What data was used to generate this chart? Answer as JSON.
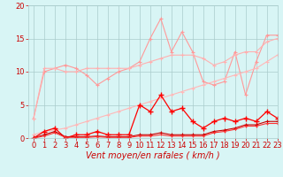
{
  "x": [
    0,
    1,
    2,
    3,
    4,
    5,
    6,
    7,
    8,
    9,
    10,
    11,
    12,
    13,
    14,
    15,
    16,
    17,
    18,
    19,
    20,
    21,
    22,
    23
  ],
  "series": [
    {
      "name": "volatile_pink",
      "color": "#FF9999",
      "lw": 0.8,
      "marker": "+",
      "ms": 3,
      "mew": 0.8,
      "y": [
        3.0,
        10.0,
        10.5,
        11.0,
        10.5,
        9.5,
        8.0,
        9.0,
        10.0,
        10.5,
        11.5,
        15.0,
        18.0,
        13.0,
        16.0,
        13.0,
        8.5,
        8.0,
        8.5,
        13.0,
        6.5,
        11.5,
        15.5,
        15.5
      ]
    },
    {
      "name": "trend_upper",
      "color": "#FFB0B0",
      "lw": 0.8,
      "marker": "+",
      "ms": 3,
      "mew": 0.8,
      "y": [
        3.0,
        10.5,
        10.5,
        10.0,
        10.0,
        10.5,
        10.5,
        10.5,
        10.5,
        10.5,
        11.0,
        11.5,
        12.0,
        12.5,
        12.5,
        12.5,
        12.0,
        11.0,
        11.5,
        12.5,
        13.0,
        13.0,
        14.5,
        15.0
      ]
    },
    {
      "name": "trend_lower",
      "color": "#FFB8B8",
      "lw": 0.8,
      "marker": "+",
      "ms": 3,
      "mew": 0.8,
      "y": [
        0.5,
        1.0,
        1.2,
        1.5,
        2.0,
        2.5,
        3.0,
        3.5,
        4.0,
        4.5,
        5.0,
        5.5,
        6.0,
        6.5,
        7.0,
        7.5,
        8.0,
        8.5,
        9.0,
        9.5,
        10.0,
        10.5,
        11.5,
        12.5
      ]
    },
    {
      "name": "gust_dark",
      "color": "#FF0000",
      "lw": 0.9,
      "marker": "+",
      "ms": 4,
      "mew": 1.0,
      "y": [
        0.0,
        1.0,
        1.5,
        0.0,
        0.5,
        0.5,
        1.0,
        0.5,
        0.5,
        0.5,
        5.0,
        4.0,
        6.5,
        4.0,
        4.5,
        2.5,
        1.5,
        2.5,
        3.0,
        2.5,
        3.0,
        2.5,
        4.0,
        3.0
      ]
    },
    {
      "name": "mean_wind",
      "color": "#CC0000",
      "lw": 0.8,
      "marker": "+",
      "ms": 3,
      "mew": 0.8,
      "y": [
        0.0,
        0.5,
        1.0,
        0.2,
        0.2,
        0.2,
        0.3,
        0.2,
        0.2,
        0.2,
        0.5,
        0.5,
        0.8,
        0.5,
        0.5,
        0.5,
        0.5,
        1.0,
        1.2,
        1.5,
        2.0,
        2.0,
        2.5,
        2.5
      ]
    },
    {
      "name": "mean_wind2",
      "color": "#FF3333",
      "lw": 0.8,
      "marker": "+",
      "ms": 2,
      "mew": 0.7,
      "y": [
        0.0,
        0.3,
        0.8,
        0.1,
        0.1,
        0.1,
        0.2,
        0.1,
        0.1,
        0.1,
        0.3,
        0.3,
        0.5,
        0.3,
        0.3,
        0.3,
        0.3,
        0.8,
        1.0,
        1.3,
        1.8,
        1.8,
        2.2,
        2.2
      ]
    }
  ],
  "xlabel": "Vent moyen/en rafales ( km/h )",
  "xlim": [
    -0.5,
    23
  ],
  "ylim": [
    0,
    20
  ],
  "yticks": [
    0,
    5,
    10,
    15,
    20
  ],
  "xticks": [
    0,
    1,
    2,
    3,
    4,
    5,
    6,
    7,
    8,
    9,
    10,
    11,
    12,
    13,
    14,
    15,
    16,
    17,
    18,
    19,
    20,
    21,
    22,
    23
  ],
  "bg_color": "#D8F5F5",
  "grid_color": "#AACCCC",
  "tick_color": "#CC0000",
  "xlabel_color": "#CC0000",
  "xlabel_fontsize": 7,
  "tick_fontsize": 6
}
